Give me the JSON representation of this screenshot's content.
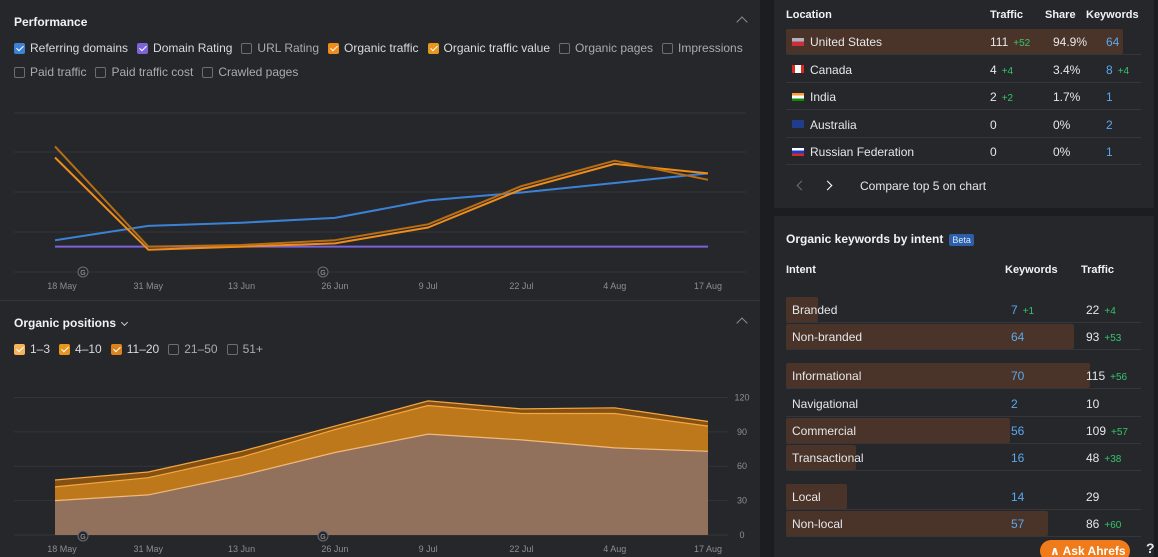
{
  "performance": {
    "title": "Performance",
    "metrics": [
      {
        "label": "Referring domains",
        "checked": true,
        "color": "#3b82d6"
      },
      {
        "label": "Domain Rating",
        "checked": true,
        "color": "#7d63d8"
      },
      {
        "label": "URL Rating",
        "checked": false
      },
      {
        "label": "Organic traffic",
        "checked": true,
        "color": "#f08c1a"
      },
      {
        "label": "Organic traffic value",
        "checked": true,
        "color": "#e8961d"
      },
      {
        "label": "Organic pages",
        "checked": false
      },
      {
        "label": "Impressions",
        "checked": false
      },
      {
        "label": "Paid traffic",
        "checked": false
      },
      {
        "label": "Paid traffic cost",
        "checked": false
      },
      {
        "label": "Crawled pages",
        "checked": false
      }
    ],
    "x_labels": [
      "18 May",
      "31 May",
      "13 Jun",
      "26 Jun",
      "9 Jul",
      "22 Jul",
      "4 Aug",
      "17 Aug"
    ],
    "marker_label": "G"
  },
  "positions": {
    "title": "Organic positions",
    "filters": [
      {
        "label": "1–3",
        "checked": true
      },
      {
        "label": "4–10",
        "checked": true
      },
      {
        "label": "11–20",
        "checked": true
      },
      {
        "label": "21–50",
        "checked": false
      },
      {
        "label": "51+",
        "checked": false
      }
    ],
    "y_ticks": [
      "120",
      "90",
      "60",
      "30",
      "0"
    ],
    "x_labels": [
      "18 May",
      "31 May",
      "13 Jun",
      "26 Jun",
      "9 Jul",
      "22 Jul",
      "4 Aug",
      "17 Aug"
    ]
  },
  "chart_data": [
    {
      "type": "line",
      "x": [
        "18 May",
        "31 May",
        "13 Jun",
        "26 Jun",
        "9 Jul",
        "22 Jul",
        "4 Aug",
        "17 Aug"
      ],
      "ylim": [
        0,
        100
      ],
      "grid": true,
      "series": [
        {
          "name": "Referring domains",
          "color": "#3b82d6",
          "values": [
            20,
            29,
            31,
            34,
            45,
            50,
            56,
            62
          ]
        },
        {
          "name": "Domain Rating",
          "color": "#7d63d8",
          "values": [
            16,
            16,
            16,
            16,
            16,
            16,
            16,
            16
          ]
        },
        {
          "name": "Organic traffic",
          "color": "#f08c1a",
          "values": [
            72,
            14,
            16,
            18,
            28,
            52,
            68,
            62
          ]
        },
        {
          "name": "Organic traffic value",
          "color": "#b86e14",
          "values": [
            79,
            16,
            17,
            20,
            30,
            54,
            70,
            58
          ]
        }
      ]
    },
    {
      "type": "area",
      "x": [
        "18 May",
        "31 May",
        "13 Jun",
        "26 Jun",
        "9 Jul",
        "22 Jul",
        "4 Aug",
        "17 Aug"
      ],
      "ylim": [
        0,
        130
      ],
      "stacked": true,
      "series": [
        {
          "name": "1–3",
          "color": "#8e7160",
          "values": [
            30,
            35,
            52,
            72,
            88,
            83,
            76,
            73
          ]
        },
        {
          "name": "4–10",
          "color": "#c07a1b",
          "values": [
            42,
            50,
            68,
            92,
            113,
            106,
            106,
            95
          ]
        },
        {
          "name": "11–20",
          "color": "#8a5312",
          "values": [
            48,
            55,
            73,
            95,
            117,
            110,
            111,
            99
          ]
        }
      ]
    }
  ],
  "locations": {
    "headers": {
      "location": "Location",
      "traffic": "Traffic",
      "share": "Share",
      "keywords": "Keywords"
    },
    "rows": [
      {
        "flag": "us",
        "name": "United States",
        "traffic": "111",
        "traffic_delta": "+52",
        "share": "94.9%",
        "keywords": "64",
        "keywords_delta": "",
        "bar": 0.95
      },
      {
        "flag": "ca",
        "name": "Canada",
        "traffic": "4",
        "traffic_delta": "+4",
        "share": "3.4%",
        "keywords": "8",
        "keywords_delta": "+4",
        "bar": 0
      },
      {
        "flag": "in",
        "name": "India",
        "traffic": "2",
        "traffic_delta": "+2",
        "share": "1.7%",
        "keywords": "1",
        "keywords_delta": "",
        "bar": 0
      },
      {
        "flag": "au",
        "name": "Australia",
        "traffic": "0",
        "traffic_delta": "",
        "share": "0%",
        "keywords": "2",
        "keywords_delta": "",
        "bar": 0
      },
      {
        "flag": "ru",
        "name": "Russian Federation",
        "traffic": "0",
        "traffic_delta": "",
        "share": "0%",
        "keywords": "1",
        "keywords_delta": "",
        "bar": 0
      }
    ],
    "compare_label": "Compare top 5 on chart"
  },
  "intent": {
    "title": "Organic keywords by intent",
    "beta": "Beta",
    "headers": {
      "intent": "Intent",
      "keywords": "Keywords",
      "traffic": "Traffic"
    },
    "groups": [
      [
        {
          "name": "Branded",
          "keywords": "7",
          "keywords_delta": "+1",
          "traffic": "22",
          "traffic_delta": "+4",
          "bar": 0.1
        },
        {
          "name": "Non-branded",
          "keywords": "64",
          "keywords_delta": "",
          "traffic": "93",
          "traffic_delta": "+53",
          "bar": 0.9
        }
      ],
      [
        {
          "name": "Informational",
          "keywords": "70",
          "keywords_delta": "",
          "traffic": "115",
          "traffic_delta": "+56",
          "bar": 0.95
        },
        {
          "name": "Navigational",
          "keywords": "2",
          "keywords_delta": "",
          "traffic": "10",
          "traffic_delta": "",
          "bar": 0
        },
        {
          "name": "Commercial",
          "keywords": "56",
          "keywords_delta": "",
          "traffic": "109",
          "traffic_delta": "+57",
          "bar": 0.7
        },
        {
          "name": "Transactional",
          "keywords": "16",
          "keywords_delta": "",
          "traffic": "48",
          "traffic_delta": "+38",
          "bar": 0.22
        }
      ],
      [
        {
          "name": "Local",
          "keywords": "14",
          "keywords_delta": "",
          "traffic": "29",
          "traffic_delta": "",
          "bar": 0.19
        },
        {
          "name": "Non-local",
          "keywords": "57",
          "keywords_delta": "",
          "traffic": "86",
          "traffic_delta": "+60",
          "bar": 0.82
        }
      ]
    ]
  },
  "assistant": {
    "label": "Ask Ahrefs",
    "help": "?"
  }
}
